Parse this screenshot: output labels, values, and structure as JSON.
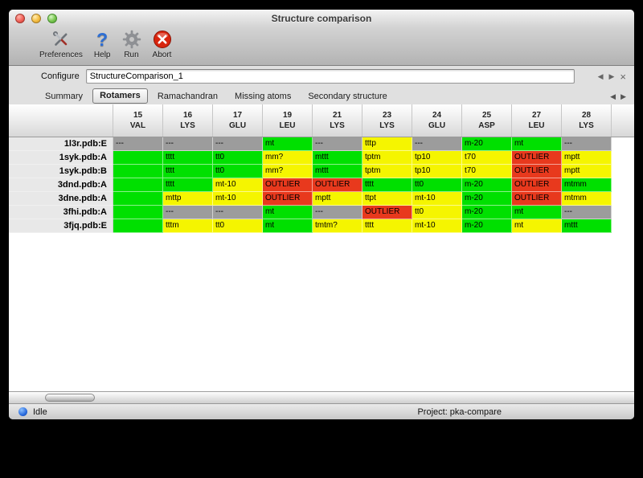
{
  "window": {
    "title": "Structure comparison"
  },
  "toolbar": {
    "buttons": [
      {
        "label": "Preferences",
        "icon": "tools-icon"
      },
      {
        "label": "Help",
        "icon": "question-icon"
      },
      {
        "label": "Run",
        "icon": "gear-icon"
      },
      {
        "label": "Abort",
        "icon": "abort-icon"
      }
    ]
  },
  "configure": {
    "label": "Configure",
    "value": "StructureComparison_1"
  },
  "icons": {
    "prev": "◀",
    "next": "▶",
    "close": "×",
    "help": "?"
  },
  "tabs": {
    "items": [
      "Summary",
      "Rotamers",
      "Ramachandran",
      "Missing atoms",
      "Secondary structure"
    ],
    "active": "Rotamers"
  },
  "status_colors": {
    "ok": "#00e000",
    "warn": "#f5f500",
    "na": "#9c9c9c",
    "outlier": "#e8391d"
  },
  "table": {
    "columns": [
      {
        "num": "15",
        "res": "VAL"
      },
      {
        "num": "16",
        "res": "LYS"
      },
      {
        "num": "17",
        "res": "GLU"
      },
      {
        "num": "19",
        "res": "LEU"
      },
      {
        "num": "21",
        "res": "LYS"
      },
      {
        "num": "23",
        "res": "LYS"
      },
      {
        "num": "24",
        "res": "GLU"
      },
      {
        "num": "25",
        "res": "ASP"
      },
      {
        "num": "27",
        "res": "LEU"
      },
      {
        "num": "28",
        "res": "LYS"
      }
    ],
    "rows": [
      {
        "label": "1l3r.pdb:E",
        "cells": [
          {
            "text": "---",
            "status": "na"
          },
          {
            "text": "---",
            "status": "na"
          },
          {
            "text": "---",
            "status": "na"
          },
          {
            "text": "mt",
            "status": "ok"
          },
          {
            "text": "---",
            "status": "na"
          },
          {
            "text": "tttp",
            "status": "warn"
          },
          {
            "text": "---",
            "status": "na"
          },
          {
            "text": "m-20",
            "status": "ok"
          },
          {
            "text": "mt",
            "status": "ok"
          },
          {
            "text": "---",
            "status": "na"
          }
        ]
      },
      {
        "label": "1syk.pdb:A",
        "cells": [
          {
            "text": "",
            "status": "ok"
          },
          {
            "text": "tttt",
            "status": "ok"
          },
          {
            "text": "tt0",
            "status": "ok"
          },
          {
            "text": "mm?",
            "status": "warn"
          },
          {
            "text": "mttt",
            "status": "ok"
          },
          {
            "text": "tptm",
            "status": "warn"
          },
          {
            "text": "tp10",
            "status": "warn"
          },
          {
            "text": "t70",
            "status": "warn"
          },
          {
            "text": "OUTLIER",
            "status": "outlier"
          },
          {
            "text": "mptt",
            "status": "warn"
          }
        ]
      },
      {
        "label": "1syk.pdb:B",
        "cells": [
          {
            "text": "",
            "status": "ok"
          },
          {
            "text": "tttt",
            "status": "ok"
          },
          {
            "text": "tt0",
            "status": "ok"
          },
          {
            "text": "mm?",
            "status": "warn"
          },
          {
            "text": "mttt",
            "status": "ok"
          },
          {
            "text": "tptm",
            "status": "warn"
          },
          {
            "text": "tp10",
            "status": "warn"
          },
          {
            "text": "t70",
            "status": "warn"
          },
          {
            "text": "OUTLIER",
            "status": "outlier"
          },
          {
            "text": "mptt",
            "status": "warn"
          }
        ]
      },
      {
        "label": "3dnd.pdb:A",
        "cells": [
          {
            "text": "",
            "status": "ok"
          },
          {
            "text": "tttt",
            "status": "ok"
          },
          {
            "text": "mt-10",
            "status": "warn"
          },
          {
            "text": "OUTLIER",
            "status": "outlier"
          },
          {
            "text": "OUTLIER",
            "status": "outlier"
          },
          {
            "text": "tttt",
            "status": "ok"
          },
          {
            "text": "tt0",
            "status": "ok"
          },
          {
            "text": "m-20",
            "status": "ok"
          },
          {
            "text": "OUTLIER",
            "status": "outlier"
          },
          {
            "text": "mtmm",
            "status": "ok"
          }
        ]
      },
      {
        "label": "3dne.pdb:A",
        "cells": [
          {
            "text": "",
            "status": "ok"
          },
          {
            "text": "mttp",
            "status": "warn"
          },
          {
            "text": "mt-10",
            "status": "warn"
          },
          {
            "text": "OUTLIER",
            "status": "outlier"
          },
          {
            "text": "mptt",
            "status": "warn"
          },
          {
            "text": "ttpt",
            "status": "warn"
          },
          {
            "text": "mt-10",
            "status": "warn"
          },
          {
            "text": "m-20",
            "status": "ok"
          },
          {
            "text": "OUTLIER",
            "status": "outlier"
          },
          {
            "text": "mtmm",
            "status": "warn"
          }
        ]
      },
      {
        "label": "3fhi.pdb:A",
        "cells": [
          {
            "text": "",
            "status": "ok"
          },
          {
            "text": "---",
            "status": "na"
          },
          {
            "text": "---",
            "status": "na"
          },
          {
            "text": "mt",
            "status": "ok"
          },
          {
            "text": "---",
            "status": "na"
          },
          {
            "text": "OUTLIER",
            "status": "outlier"
          },
          {
            "text": "tt0",
            "status": "warn"
          },
          {
            "text": "m-20",
            "status": "ok"
          },
          {
            "text": "mt",
            "status": "ok"
          },
          {
            "text": "---",
            "status": "na"
          }
        ]
      },
      {
        "label": "3fjq.pdb:E",
        "cells": [
          {
            "text": "",
            "status": "ok"
          },
          {
            "text": "tttm",
            "status": "warn"
          },
          {
            "text": "tt0",
            "status": "warn"
          },
          {
            "text": "mt",
            "status": "ok"
          },
          {
            "text": "tmtm?",
            "status": "warn"
          },
          {
            "text": "tttt",
            "status": "warn"
          },
          {
            "text": "mt-10",
            "status": "warn"
          },
          {
            "text": "m-20",
            "status": "ok"
          },
          {
            "text": "mt",
            "status": "warn"
          },
          {
            "text": "mttt",
            "status": "ok"
          }
        ]
      }
    ]
  },
  "statusbar": {
    "status": "Idle",
    "project": "Project: pka-compare"
  }
}
